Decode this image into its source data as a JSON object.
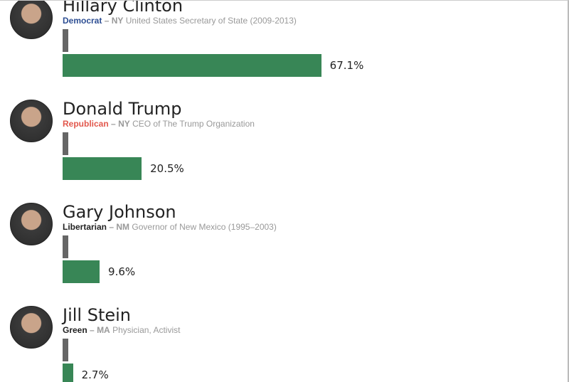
{
  "candidates": [
    {
      "name": "Hillary Clinton",
      "party": "Democrat",
      "party_color": "#2d4e93",
      "state": "NY",
      "description": "United States Secretary of State (2009-2013)",
      "value": 67.1,
      "value_label": "67.1%"
    },
    {
      "name": "Donald Trump",
      "party": "Republican",
      "party_color": "#e2584d",
      "state": "NY",
      "description": "CEO of The Trump Organization",
      "value": 20.5,
      "value_label": "20.5%"
    },
    {
      "name": "Gary Johnson",
      "party": "Libertarian",
      "party_color": "#222222",
      "state": "NM",
      "description": "Governor of New Mexico (1995–2003)",
      "value": 9.6,
      "value_label": "9.6%"
    },
    {
      "name": "Jill Stein",
      "party": "Green",
      "party_color": "#222222",
      "state": "MA",
      "description": "Physician, Activist",
      "value": 2.7,
      "value_label": "2.7%"
    }
  ],
  "separator": "–",
  "bar_color": "#388656"
}
